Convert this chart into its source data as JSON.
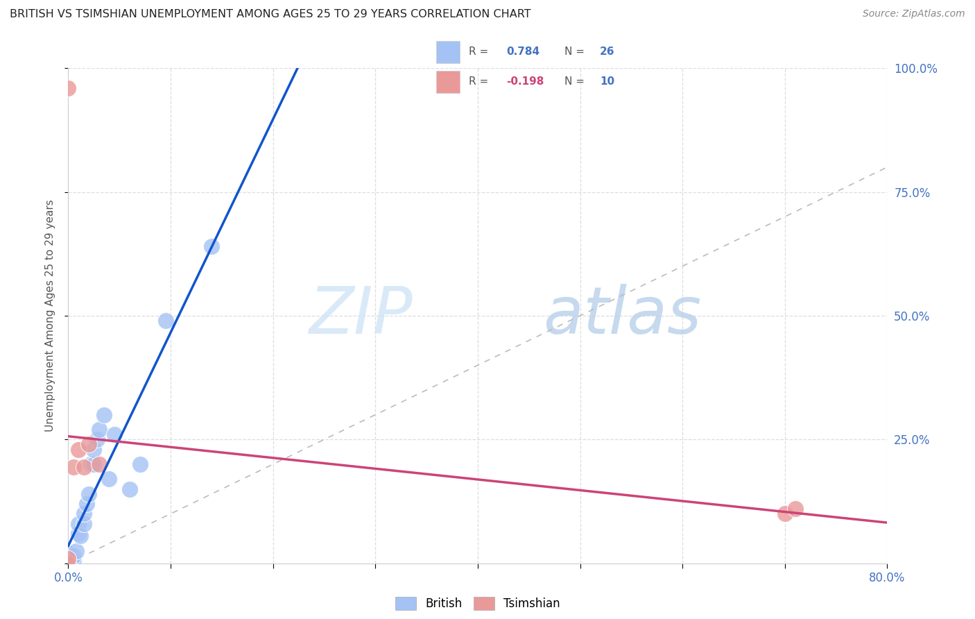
{
  "title": "BRITISH VS TSIMSHIAN UNEMPLOYMENT AMONG AGES 25 TO 29 YEARS CORRELATION CHART",
  "source": "Source: ZipAtlas.com",
  "ylabel": "Unemployment Among Ages 25 to 29 years",
  "british_color": "#a4c2f4",
  "tsimshian_color": "#ea9999",
  "british_R": 0.784,
  "british_N": 26,
  "tsimshian_R": -0.198,
  "tsimshian_N": 10,
  "british_line_color": "#1155cc",
  "tsimshian_line_color": "#cc4477",
  "diagonal_color": "#bbbbbb",
  "background_color": "#ffffff",
  "grid_color": "#dddddd",
  "watermark_zip": "ZIP",
  "watermark_atlas": "atlas",
  "xlim": [
    0.0,
    0.8
  ],
  "ylim": [
    0.0,
    1.0
  ],
  "british_x": [
    0.0,
    0.0,
    0.0,
    0.0,
    0.005,
    0.005,
    0.008,
    0.01,
    0.01,
    0.012,
    0.015,
    0.015,
    0.018,
    0.02,
    0.022,
    0.025,
    0.025,
    0.028,
    0.03,
    0.035,
    0.04,
    0.045,
    0.06,
    0.07,
    0.095,
    0.14
  ],
  "british_y": [
    0.0,
    0.005,
    0.01,
    0.02,
    0.005,
    0.015,
    0.025,
    0.06,
    0.08,
    0.055,
    0.08,
    0.1,
    0.12,
    0.14,
    0.2,
    0.2,
    0.23,
    0.25,
    0.27,
    0.3,
    0.17,
    0.26,
    0.15,
    0.2,
    0.49,
    0.64
  ],
  "tsimshian_x": [
    0.0,
    0.0,
    0.0,
    0.005,
    0.01,
    0.015,
    0.02,
    0.03,
    0.7,
    0.71
  ],
  "tsimshian_y": [
    0.0,
    0.01,
    0.96,
    0.195,
    0.23,
    0.195,
    0.24,
    0.2,
    0.1,
    0.11
  ]
}
